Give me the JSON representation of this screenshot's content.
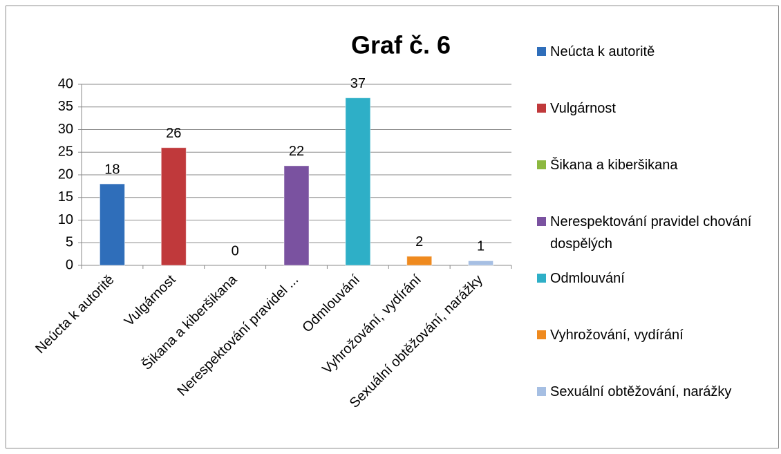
{
  "chart_data": {
    "type": "bar",
    "title": "Graf č. 6",
    "categories": [
      "Neúcta k autoritě",
      "Vulgárnost",
      "Šikana a kiberšikana",
      "Nerespektování pravidel ...",
      "Odmlouvání",
      "Vyhrožování, vydírání",
      "Sexuální obtěžování, narážky"
    ],
    "values": [
      18,
      26,
      0,
      22,
      37,
      2,
      1
    ],
    "legend": [
      "Neúcta k autoritě",
      "Vulgárnost",
      "Šikana a kiberšikana",
      "Nerespektování pravidel chování dospělých",
      "Odmlouvání",
      "Vyhrožování, vydírání",
      "Sexuální obtěžování, narážky"
    ],
    "colors": [
      "#2f6eba",
      "#c0393b",
      "#8cb83f",
      "#7a52a0",
      "#2eafc7",
      "#ef8a1f",
      "#a6bfe3"
    ],
    "ylim": [
      0,
      40
    ],
    "yticks": [
      0,
      5,
      10,
      15,
      20,
      25,
      30,
      35,
      40
    ],
    "grid": true,
    "legend_position": "right"
  }
}
